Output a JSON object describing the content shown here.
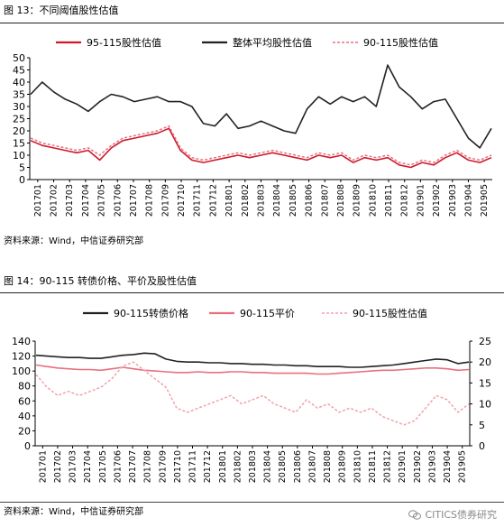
{
  "figures": [
    {
      "title": "图 13：不同阈值股性估值",
      "source": "资料来源：Wind，中信证券研究部"
    },
    {
      "title": "图 14：90-115 转债价格、平价及股性估值",
      "source": "资料来源：Wind，中信证券研究部"
    }
  ],
  "watermark": {
    "text": "CITICS债券研究",
    "icon": "wechat-icon"
  },
  "colors": {
    "black": "#222222",
    "red": "#cc1a2b",
    "pink": "#e8707e",
    "pink_light": "#f2a1ab"
  },
  "chart_data": [
    {
      "type": "line",
      "ylim": [
        0,
        50
      ],
      "y_ticks": [
        0,
        5,
        10,
        15,
        20,
        25,
        30,
        35,
        40,
        45,
        50
      ],
      "x_ticks": [
        "201701",
        "201702",
        "201703",
        "201704",
        "201705",
        "201706",
        "201707",
        "201708",
        "201709",
        "201710",
        "201711",
        "201712",
        "201801",
        "201802",
        "201803",
        "201804",
        "201805",
        "201806",
        "201807",
        "201808",
        "201809",
        "201810",
        "201811",
        "201812",
        "201901",
        "201902",
        "201903",
        "201904",
        "201905"
      ],
      "grid": false,
      "legend_position": "top",
      "series": [
        {
          "name": "95-115股性估值",
          "style": "solid",
          "color": "#cc1a2b",
          "values": [
            16,
            14,
            13,
            12,
            11,
            12,
            8,
            13,
            16,
            17,
            18,
            19,
            21,
            12,
            8,
            7,
            8,
            9,
            10,
            9,
            10,
            11,
            10,
            9,
            8,
            10,
            9,
            10,
            7,
            9,
            8,
            9,
            6,
            5,
            7,
            6,
            9,
            11,
            8,
            7,
            9
          ]
        },
        {
          "name": "整体平均股性估值",
          "style": "solid",
          "color": "#222222",
          "values": [
            35,
            40,
            36,
            33,
            31,
            28,
            32,
            35,
            34,
            32,
            33,
            34,
            32,
            32,
            30,
            23,
            22,
            27,
            21,
            22,
            24,
            22,
            20,
            19,
            29,
            34,
            31,
            34,
            32,
            34,
            30,
            47,
            38,
            34,
            29,
            32,
            33,
            25,
            17,
            13,
            21
          ]
        },
        {
          "name": "90-115股性估值",
          "style": "dashed",
          "color": "#e8707e",
          "values": [
            17,
            15,
            14,
            13,
            12,
            13,
            10,
            14,
            17,
            18,
            19,
            20,
            22,
            13,
            9,
            8,
            9,
            10,
            11,
            10,
            11,
            12,
            11,
            10,
            9,
            11,
            10,
            11,
            8,
            10,
            9,
            10,
            7,
            6,
            8,
            7,
            10,
            12,
            9,
            8,
            10
          ]
        }
      ]
    },
    {
      "type": "line",
      "ylim": [
        0,
        140
      ],
      "y_ticks": [
        0,
        20,
        40,
        60,
        80,
        100,
        120,
        140
      ],
      "y2lim": [
        0,
        25
      ],
      "y2_ticks": [
        0,
        5,
        10,
        15,
        20,
        25
      ],
      "x_ticks": [
        "201701",
        "201702",
        "201703",
        "201704",
        "201705",
        "201706",
        "201707",
        "201708",
        "201709",
        "201710",
        "201711",
        "201712",
        "201801",
        "201802",
        "201803",
        "201804",
        "201805",
        "201806",
        "201807",
        "201808",
        "201809",
        "201810",
        "201811",
        "201812",
        "201901",
        "201902",
        "201903",
        "201904",
        "201905"
      ],
      "grid": false,
      "legend_position": "top",
      "series": [
        {
          "name": "90-115转债价格",
          "style": "solid",
          "color": "#222222",
          "axis": "left",
          "values": [
            121,
            120,
            119,
            118,
            118,
            117,
            117,
            119,
            121,
            122,
            124,
            123,
            116,
            113,
            112,
            112,
            111,
            111,
            110,
            110,
            109,
            109,
            108,
            108,
            107,
            107,
            106,
            106,
            106,
            105,
            105,
            106,
            107,
            108,
            110,
            112,
            114,
            116,
            115,
            110,
            112
          ]
        },
        {
          "name": "90-115平价",
          "style": "solid",
          "color": "#e8707e",
          "axis": "left",
          "values": [
            108,
            106,
            104,
            103,
            102,
            102,
            101,
            103,
            105,
            103,
            101,
            100,
            99,
            98,
            98,
            99,
            98,
            98,
            99,
            99,
            98,
            98,
            97,
            97,
            97,
            97,
            96,
            96,
            97,
            98,
            99,
            100,
            101,
            101,
            102,
            103,
            104,
            104,
            103,
            101,
            102
          ]
        },
        {
          "name": "90-115股性估值",
          "style": "dashed",
          "color": "#f2a1ab",
          "axis": "right",
          "values": [
            17,
            14,
            12,
            13,
            12,
            13,
            14,
            16,
            19,
            20,
            18,
            16,
            14,
            9,
            8,
            9,
            10,
            11,
            12,
            10,
            11,
            12,
            10,
            9,
            8,
            11,
            9,
            10,
            8,
            9,
            8,
            9,
            7,
            6,
            5,
            6,
            9,
            12,
            11,
            8,
            10
          ]
        }
      ]
    }
  ]
}
